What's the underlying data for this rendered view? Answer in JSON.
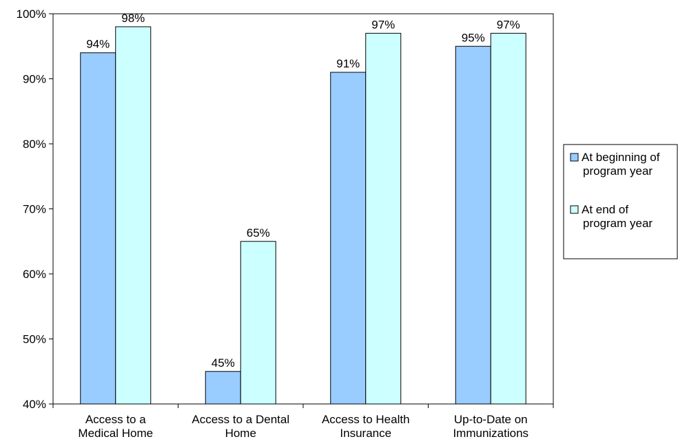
{
  "chart_data": {
    "type": "bar",
    "title": "",
    "xlabel": "",
    "ylabel": "",
    "ylim": [
      40,
      100
    ],
    "yticks": [
      40,
      50,
      60,
      70,
      80,
      90,
      100
    ],
    "ytick_labels": [
      "40%",
      "50%",
      "60%",
      "70%",
      "80%",
      "90%",
      "100%"
    ],
    "categories": [
      [
        "Access to a",
        "Medical Home"
      ],
      [
        "Access to a Dental",
        "Home"
      ],
      [
        "Access to Health",
        "Insurance"
      ],
      [
        "Up-to-Date on",
        "Immunizations"
      ]
    ],
    "series": [
      {
        "name_lines": [
          "At beginning of",
          "program year"
        ],
        "color": "#99ccff",
        "values": [
          94,
          45,
          91,
          95
        ],
        "labels": [
          "94%",
          "45%",
          "91%",
          "95%"
        ]
      },
      {
        "name_lines": [
          "At end of",
          "program year"
        ],
        "color": "#ccffff",
        "values": [
          98,
          65,
          97,
          97
        ],
        "labels": [
          "98%",
          "65%",
          "97%",
          "97%"
        ]
      }
    ],
    "grid": false,
    "legend": "right"
  }
}
